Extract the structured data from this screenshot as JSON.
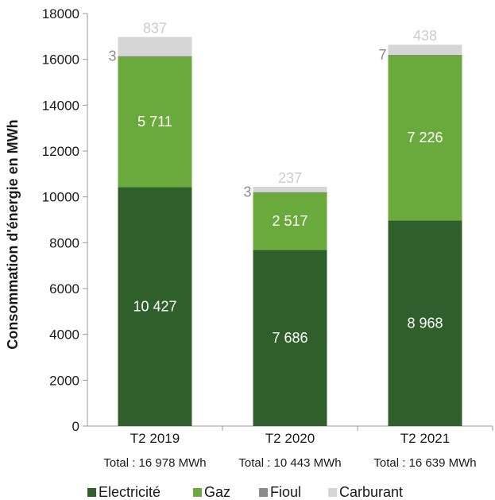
{
  "chart_data": {
    "type": "bar",
    "stacked": true,
    "ylabel": "Consommation d'énergie en MWh",
    "ylim": [
      0,
      18000
    ],
    "yticks": [
      "0",
      "2000",
      "4000",
      "6000",
      "8000",
      "10000",
      "12000",
      "14000",
      "16000",
      "18000"
    ],
    "categories": [
      "T2 2019",
      "T2 2020",
      "T2 2021"
    ],
    "totals": [
      "Total : 16 978 MWh",
      "Total : 10 443 MWh",
      "Total : 16 639 MWh"
    ],
    "series": [
      {
        "name": "Electricité",
        "color": "#2f5f2a",
        "label_color": "#ffffff",
        "values": [
          10427,
          7686,
          8968
        ],
        "labels": [
          "10 427",
          "7 686",
          "8 968"
        ]
      },
      {
        "name": "Gaz",
        "color": "#6aaa3c",
        "label_color": "#ffffff",
        "values": [
          5711,
          2517,
          7226
        ],
        "labels": [
          "5 711",
          "2 517",
          "7 226"
        ]
      },
      {
        "name": "Fioul",
        "color": "#8c8c8c",
        "label_color": "#8c8c8c",
        "values": [
          3,
          3,
          7
        ],
        "labels": [
          "3",
          "3",
          "7"
        ]
      },
      {
        "name": "Carburant",
        "color": "#d6d6d6",
        "label_color": "#cccccc",
        "values": [
          837,
          237,
          438
        ],
        "labels": [
          "837",
          "237",
          "438"
        ]
      }
    ],
    "grid": false,
    "legend": "bottom"
  }
}
